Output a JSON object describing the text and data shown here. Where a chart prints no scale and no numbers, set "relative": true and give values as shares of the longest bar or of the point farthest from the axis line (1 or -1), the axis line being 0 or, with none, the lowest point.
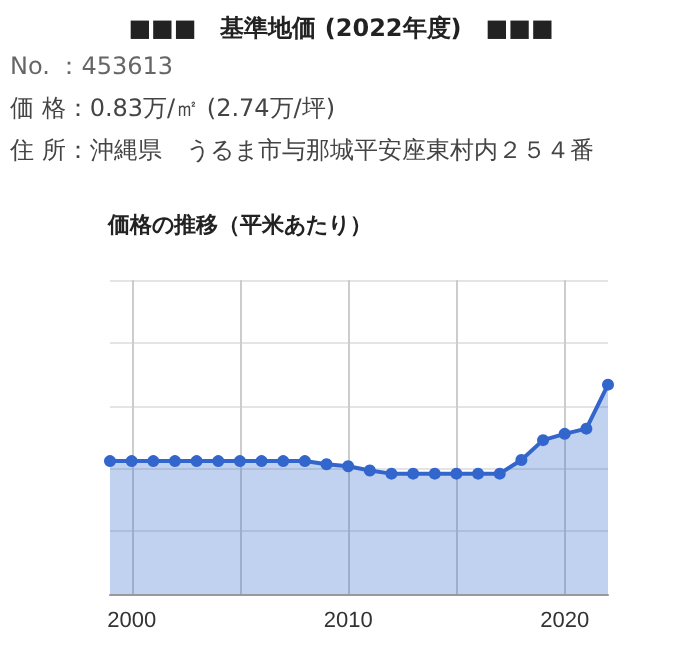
{
  "chart_data": {
    "type": "area",
    "title": "■■■　基準地価 (2022年度)　■■■",
    "subtitle": "価格の推移（平米あたり）",
    "annotations": [
      "No. ：453613",
      "価 格：0.83万/㎡ (2.74万/坪)",
      "住 所：沖縄県　うるま市与那城平安座東村内２５４番"
    ],
    "x": [
      1999,
      2000,
      2001,
      2002,
      2003,
      2004,
      2005,
      2006,
      2007,
      2008,
      2009,
      2010,
      2011,
      2012,
      2013,
      2014,
      2015,
      2016,
      2017,
      2018,
      2019,
      2020,
      2021,
      2022
    ],
    "series": [
      {
        "color": "#3366cc",
        "values": [
          0.635,
          0.635,
          0.635,
          0.635,
          0.635,
          0.635,
          0.635,
          0.635,
          0.635,
          0.635,
          0.62,
          0.61,
          0.59,
          0.575,
          0.575,
          0.575,
          0.575,
          0.575,
          0.575,
          0.64,
          0.735,
          0.765,
          0.79,
          1
        ]
      }
    ],
    "relative": true,
    "xlim": [
      1999,
      2022
    ],
    "xticks": [
      2000,
      {
        "value": 2005,
        "label": null
      },
      2010,
      {
        "value": 2015,
        "label": null
      },
      2020
    ],
    "grid": true,
    "marker": "circle",
    "line_style": "solid"
  }
}
